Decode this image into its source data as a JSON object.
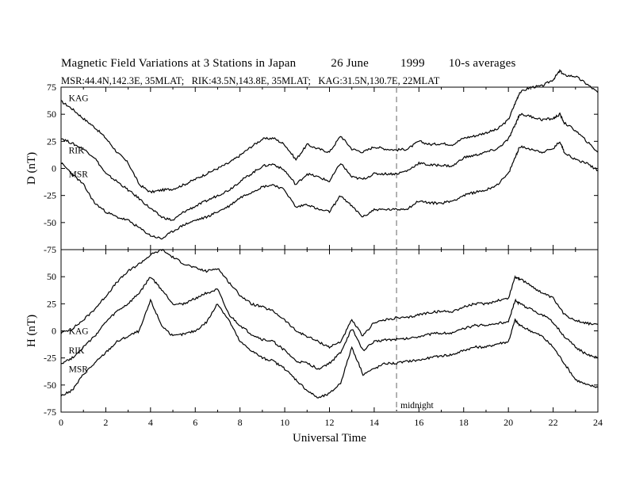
{
  "figure": {
    "title_parts": [
      "Magnetic Field Variations at 3 Stations in Japan",
      "26 June",
      "1999",
      "10-s averages"
    ],
    "subtitle": "MSR:44.4N,142.3E, 35MLAT;   RIK:43.5N,143.8E, 35MLAT;   KAG:31.5N,130.7E, 22MLAT"
  },
  "chart_data": [
    {
      "type": "line",
      "panel": "top",
      "ylabel": "D (nT)",
      "ylim": [
        -75,
        75
      ],
      "yticks": [
        75,
        50,
        25,
        0,
        -25,
        -50,
        -75
      ],
      "xlim": [
        0,
        24
      ],
      "annotations": [
        {
          "text": "midnight",
          "x": 15,
          "style": "dashed vertical line"
        }
      ],
      "series": [
        {
          "name": "KAG",
          "label_at": [
            0.2,
            65
          ],
          "x": [
            0,
            0.5,
            1,
            1.5,
            2,
            2.5,
            3,
            3.5,
            4,
            4.5,
            5,
            5.5,
            6,
            6.5,
            7,
            7.5,
            8,
            8.5,
            9,
            9.5,
            10,
            10.5,
            11,
            11.5,
            12,
            12.5,
            13,
            13.5,
            14,
            14.5,
            15,
            15.5,
            16,
            16.5,
            17,
            17.5,
            18,
            18.5,
            19,
            19.5,
            20,
            20.3,
            20.5,
            21,
            21.5,
            22,
            22.3,
            22.5,
            23,
            23.5,
            24
          ],
          "y": [
            62,
            55,
            46,
            38,
            28,
            15,
            5,
            -15,
            -22,
            -20,
            -19,
            -15,
            -10,
            -5,
            0,
            5,
            12,
            20,
            27,
            28,
            22,
            8,
            22,
            18,
            15,
            30,
            18,
            15,
            20,
            18,
            17,
            18,
            25,
            22,
            23,
            22,
            28,
            30,
            33,
            36,
            45,
            60,
            70,
            75,
            76,
            82,
            90,
            86,
            85,
            78,
            70
          ]
        },
        {
          "name": "RIK",
          "label_at": [
            0.2,
            17
          ],
          "x": [
            0,
            0.5,
            1,
            1.5,
            2,
            2.5,
            3,
            3.5,
            4,
            4.5,
            5,
            5.5,
            6,
            6.5,
            7,
            7.5,
            8,
            8.5,
            9,
            9.5,
            10,
            10.5,
            11,
            11.5,
            12,
            12.5,
            13,
            13.5,
            14,
            14.5,
            15,
            15.5,
            16,
            16.5,
            17,
            17.5,
            18,
            18.5,
            19,
            19.5,
            20,
            20.3,
            20.5,
            21,
            21.5,
            22,
            22.3,
            22.5,
            23,
            23.5,
            24
          ],
          "y": [
            28,
            23,
            18,
            10,
            -5,
            -12,
            -20,
            -28,
            -37,
            -45,
            -48,
            -40,
            -35,
            -30,
            -25,
            -20,
            -12,
            -5,
            2,
            4,
            -2,
            -15,
            -5,
            -8,
            -12,
            5,
            -8,
            -10,
            -5,
            -5,
            -5,
            -2,
            5,
            3,
            3,
            2,
            10,
            12,
            15,
            18,
            27,
            40,
            50,
            48,
            45,
            46,
            50,
            42,
            35,
            25,
            15
          ]
        },
        {
          "name": "MSR",
          "label_at": [
            0.2,
            -5
          ],
          "x": [
            0,
            0.5,
            1,
            1.5,
            2,
            2.5,
            3,
            3.5,
            4,
            4.5,
            5,
            5.5,
            6,
            6.5,
            7,
            7.5,
            8,
            8.5,
            9,
            9.5,
            10,
            10.5,
            11,
            11.5,
            12,
            12.5,
            13,
            13.5,
            14,
            14.5,
            15,
            15.5,
            16,
            16.5,
            17,
            17.5,
            18,
            18.5,
            19,
            19.5,
            20,
            20.3,
            20.5,
            21,
            21.5,
            22,
            22.3,
            22.5,
            23,
            23.5,
            24
          ],
          "y": [
            5,
            -5,
            -15,
            -32,
            -40,
            -45,
            -48,
            -55,
            -62,
            -65,
            -58,
            -52,
            -48,
            -45,
            -40,
            -35,
            -27,
            -22,
            -17,
            -15,
            -20,
            -36,
            -33,
            -38,
            -40,
            -25,
            -35,
            -45,
            -38,
            -38,
            -38,
            -37,
            -30,
            -32,
            -32,
            -30,
            -25,
            -22,
            -20,
            -15,
            -5,
            10,
            20,
            18,
            15,
            18,
            25,
            15,
            8,
            5,
            -2
          ]
        }
      ]
    },
    {
      "type": "line",
      "panel": "bottom",
      "xlabel": "Universal Time",
      "ylabel": "H (nT)",
      "ylim": [
        -75,
        75
      ],
      "yticks": [
        50,
        25,
        0,
        -25,
        -50,
        -75
      ],
      "xlim": [
        0,
        24
      ],
      "xticks": [
        0,
        2,
        4,
        6,
        8,
        10,
        12,
        14,
        16,
        18,
        20,
        22,
        24
      ],
      "annotations": [
        {
          "text": "midnight",
          "x": 15,
          "style": "dashed vertical line"
        }
      ],
      "series": [
        {
          "name": "KAG",
          "label_at": [
            0.2,
            0
          ],
          "x": [
            0,
            0.5,
            1,
            1.5,
            2,
            2.5,
            3,
            3.5,
            4,
            4.5,
            5,
            5.5,
            6,
            6.5,
            7,
            7.5,
            8,
            8.5,
            9,
            9.5,
            10,
            10.5,
            11,
            11.5,
            12,
            12.5,
            13,
            13.5,
            14,
            14.5,
            15,
            15.5,
            16,
            16.5,
            17,
            17.5,
            18,
            18.5,
            19,
            19.5,
            20,
            20.3,
            20.5,
            21,
            21.5,
            22,
            22.5,
            23,
            23.5,
            24
          ],
          "y": [
            -2,
            2,
            10,
            20,
            32,
            45,
            55,
            62,
            70,
            75,
            68,
            62,
            58,
            55,
            58,
            45,
            33,
            25,
            22,
            18,
            10,
            0,
            -5,
            -10,
            -15,
            -10,
            10,
            -5,
            8,
            10,
            12,
            12,
            15,
            17,
            18,
            18,
            22,
            25,
            25,
            28,
            30,
            50,
            48,
            42,
            35,
            30,
            15,
            10,
            7,
            6
          ]
        },
        {
          "name": "RIK",
          "label_at": [
            0.2,
            -18
          ],
          "x": [
            0,
            0.5,
            1,
            1.5,
            2,
            2.5,
            3,
            3.5,
            4,
            4.5,
            5,
            5.5,
            6,
            6.5,
            7,
            7.5,
            8,
            8.5,
            9,
            9.5,
            10,
            10.5,
            11,
            11.5,
            12,
            12.5,
            13,
            13.5,
            14,
            14.5,
            15,
            15.5,
            16,
            16.5,
            17,
            17.5,
            18,
            18.5,
            19,
            19.5,
            20,
            20.3,
            20.5,
            21,
            21.5,
            22,
            22.5,
            23,
            23.5,
            24
          ],
          "y": [
            -30,
            -25,
            -15,
            -5,
            8,
            18,
            25,
            35,
            50,
            38,
            25,
            25,
            30,
            35,
            38,
            15,
            5,
            -3,
            -8,
            -10,
            -18,
            -28,
            -30,
            -35,
            -30,
            -20,
            2,
            -18,
            -10,
            -8,
            -8,
            -7,
            -5,
            -3,
            -2,
            -2,
            2,
            5,
            5,
            7,
            8,
            28,
            25,
            20,
            15,
            8,
            -5,
            -15,
            -22,
            -25
          ]
        },
        {
          "name": "MSR",
          "label_at": [
            0.2,
            -35
          ],
          "x": [
            0,
            0.5,
            1,
            1.5,
            2,
            2.5,
            3,
            3.5,
            4,
            4.5,
            5,
            5.5,
            6,
            6.5,
            7,
            7.5,
            8,
            8.5,
            9,
            9.5,
            10,
            10.5,
            11,
            11.5,
            12,
            12.5,
            13,
            13.5,
            14,
            14.5,
            15,
            15.5,
            16,
            16.5,
            17,
            17.5,
            18,
            18.5,
            19,
            19.5,
            20,
            20.3,
            20.5,
            21,
            21.5,
            22,
            22.5,
            23,
            23.5,
            24
          ],
          "y": [
            -60,
            -55,
            -40,
            -30,
            -20,
            -10,
            -5,
            0,
            28,
            5,
            -5,
            -3,
            0,
            8,
            25,
            10,
            -10,
            -18,
            -25,
            -28,
            -35,
            -45,
            -55,
            -62,
            -58,
            -48,
            -15,
            -40,
            -35,
            -30,
            -30,
            -28,
            -27,
            -25,
            -23,
            -22,
            -18,
            -15,
            -15,
            -12,
            -10,
            10,
            5,
            0,
            -5,
            -15,
            -30,
            -45,
            -50,
            -52
          ]
        }
      ]
    }
  ],
  "midnight_label": "midnight"
}
